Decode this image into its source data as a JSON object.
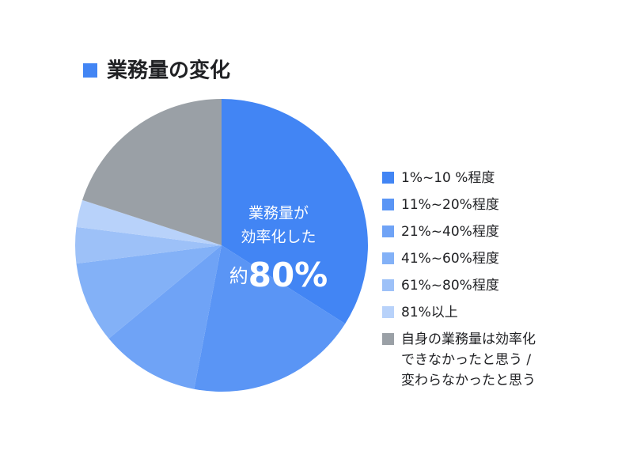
{
  "chart_data": {
    "type": "pie",
    "title": "業務量の変化",
    "categories": [
      "1%~10 %程度",
      "11%~20%程度",
      "21%~40%程度",
      "41%~60%程度",
      "61%~80%程度",
      "81%以上",
      "自身の業務量は効率化\nできなかったと思う /\n変わらなかったと思う"
    ],
    "values": [
      34,
      19,
      11,
      9,
      4,
      3,
      20
    ],
    "colors": [
      "#4285f4",
      "#5a95f5",
      "#6fa3f6",
      "#83b1f7",
      "#9dc1f8",
      "#b8d2fa",
      "#9aa0a6"
    ],
    "title_color": "#4285f4",
    "center_label": [
      "業務量が",
      "効率化した"
    ],
    "center_prefix": "約",
    "center_value": "80%"
  }
}
